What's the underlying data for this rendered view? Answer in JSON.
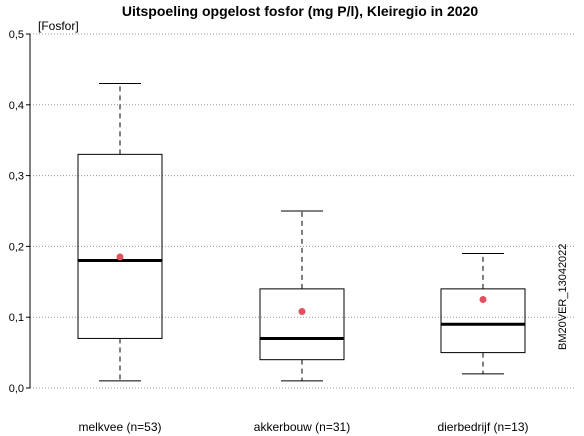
{
  "chart_data": {
    "type": "boxplot",
    "title": "Uitspoeling opgelost fosfor (mg P/l),  Kleiregio in 2020",
    "ylabel": "[Fosfor]",
    "ylim": [
      0,
      0.5
    ],
    "yticks": [
      "0,0",
      "0,1",
      "0,2",
      "0,3",
      "0,4",
      "0,5"
    ],
    "grid": "horizontal-dotted",
    "categories": [
      "melkvee (n=53)",
      "akkerbouw (n=31)",
      "dierbedrijf (n=13)"
    ],
    "boxes": [
      {
        "whisker_low": 0.01,
        "q1": 0.07,
        "median": 0.18,
        "q3": 0.33,
        "whisker_high": 0.43,
        "mean": 0.185
      },
      {
        "whisker_low": 0.01,
        "q1": 0.04,
        "median": 0.07,
        "q3": 0.14,
        "whisker_high": 0.25,
        "mean": 0.108
      },
      {
        "whisker_low": 0.02,
        "q1": 0.05,
        "median": 0.09,
        "q3": 0.14,
        "whisker_high": 0.19,
        "mean": 0.125
      }
    ],
    "mean_color": "#e0505f",
    "side_label": "BM20VER_13042022"
  }
}
